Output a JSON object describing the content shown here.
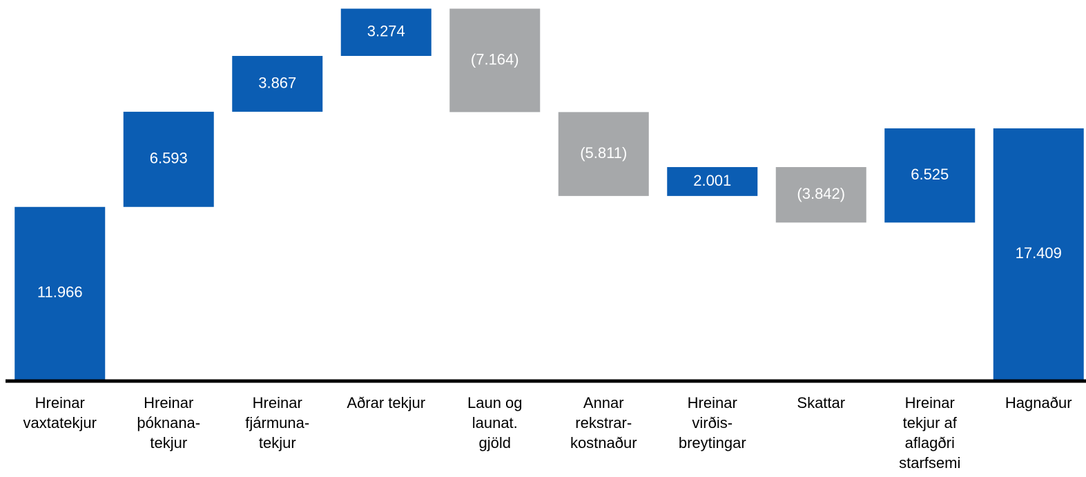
{
  "chart_data": {
    "type": "waterfall",
    "categories": [
      [
        "Hreinar",
        "vaxtatekjur"
      ],
      [
        "Hreinar",
        "þóknana-",
        "tekjur"
      ],
      [
        "Hreinar",
        "fjármuna-",
        "tekjur"
      ],
      [
        "Aðrar tekjur"
      ],
      [
        "Laun og",
        "launat.",
        "gjöld"
      ],
      [
        "Annar",
        "rekstrar-",
        "kostnaður"
      ],
      [
        "Hreinar",
        "virðis-",
        "breytingar"
      ],
      [
        "Skattar"
      ],
      [
        "Hreinar",
        "tekjur af",
        "aflagðri",
        "starfsemi"
      ],
      [
        "Hagnaður"
      ]
    ],
    "values": [
      11966,
      6593,
      3867,
      3274,
      -7164,
      -5811,
      2001,
      -3842,
      6525,
      17409
    ],
    "value_labels": [
      "11.966",
      "6.593",
      "3.867",
      "3.274",
      "(7.164)",
      "(5.811)",
      "2.001",
      "(3.842)",
      "6.525",
      "17.409"
    ],
    "is_total": [
      false,
      false,
      false,
      false,
      false,
      false,
      false,
      false,
      false,
      true
    ],
    "color": "#0b5db3",
    "negative_color": "#a6a8aa",
    "label_color": "#ffffff",
    "ylim": [
      0,
      26300
    ]
  }
}
